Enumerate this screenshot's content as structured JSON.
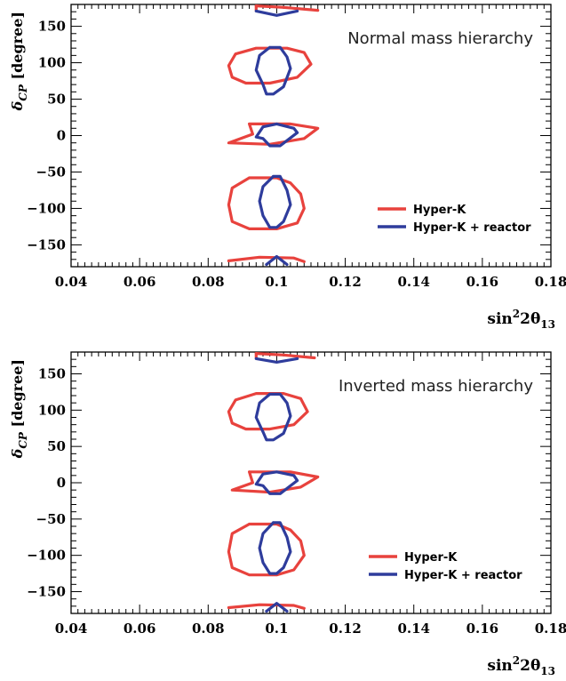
{
  "chart_data": [
    {
      "type": "line",
      "annotation": "Normal mass hierarchy",
      "xlabel": {
        "base": "sin",
        "sup": "2",
        "mid": "2θ",
        "sub": "13"
      },
      "ylabel": {
        "sym": "δ",
        "sub": "CP",
        "rest": " [degree]"
      },
      "xlim": [
        0.04,
        0.18
      ],
      "ylim": [
        -180,
        180
      ],
      "x_ticks": [
        0.04,
        0.06,
        0.08,
        0.1,
        0.12,
        0.14,
        0.16,
        0.18
      ],
      "x_tick_labels": [
        "0.04",
        "0.06",
        "0.08",
        "0.1",
        "0.12",
        "0.14",
        "0.16",
        "0.18"
      ],
      "y_ticks": [
        -150,
        -100,
        -50,
        0,
        50,
        100,
        150
      ],
      "y_tick_labels": [
        "−150",
        "−100",
        "−50",
        "0",
        "50",
        "100",
        "150"
      ],
      "legend": "right",
      "grid": false,
      "series": [
        {
          "name": "Hyper-K",
          "color": "#e8423d",
          "contours": [
            [
              [
                0.094,
                120
              ],
              [
                0.103,
                120
              ],
              [
                0.108,
                114
              ],
              [
                0.11,
                98
              ],
              [
                0.106,
                80
              ],
              [
                0.098,
                72
              ],
              [
                0.091,
                72
              ],
              [
                0.087,
                80
              ],
              [
                0.086,
                96
              ],
              [
                0.088,
                112
              ],
              [
                0.094,
                120
              ]
            ],
            [
              [
                0.092,
                16
              ],
              [
                0.104,
                16
              ],
              [
                0.112,
                10
              ],
              [
                0.108,
                -4
              ],
              [
                0.098,
                -12
              ],
              [
                0.086,
                -10
              ],
              [
                0.093,
                2
              ],
              [
                0.092,
                16
              ]
            ],
            [
              [
                0.092,
                -58
              ],
              [
                0.1,
                -58
              ],
              [
                0.104,
                -65
              ],
              [
                0.107,
                -80
              ],
              [
                0.108,
                -100
              ],
              [
                0.106,
                -120
              ],
              [
                0.1,
                -128
              ],
              [
                0.092,
                -128
              ],
              [
                0.087,
                -118
              ],
              [
                0.086,
                -95
              ],
              [
                0.087,
                -72
              ],
              [
                0.092,
                -58
              ]
            ],
            [
              [
                0.094,
                178
              ],
              [
                0.102,
                176
              ],
              [
                0.112,
                172
              ]
            ],
            [
              [
                0.094,
                178
              ],
              [
                0.094,
                172
              ]
            ],
            [
              [
                0.086,
                -172
              ],
              [
                0.095,
                -167
              ],
              [
                0.105,
                -168
              ],
              [
                0.108,
                -173
              ]
            ]
          ]
        },
        {
          "name": "Hyper-K + reactor",
          "color": "#2e3c9c",
          "contours": [
            [
              [
                0.098,
                121
              ],
              [
                0.101,
                121
              ],
              [
                0.103,
                108
              ],
              [
                0.104,
                92
              ],
              [
                0.102,
                67
              ],
              [
                0.099,
                57
              ],
              [
                0.097,
                57
              ],
              [
                0.096,
                70
              ],
              [
                0.094,
                90
              ],
              [
                0.095,
                110
              ],
              [
                0.098,
                121
              ]
            ],
            [
              [
                0.096,
                12
              ],
              [
                0.1,
                16
              ],
              [
                0.105,
                10
              ],
              [
                0.106,
                4
              ],
              [
                0.101,
                -14
              ],
              [
                0.098,
                -14
              ],
              [
                0.096,
                -4
              ],
              [
                0.094,
                -2
              ],
              [
                0.096,
                12
              ]
            ],
            [
              [
                0.099,
                -56
              ],
              [
                0.101,
                -56
              ],
              [
                0.103,
                -75
              ],
              [
                0.104,
                -95
              ],
              [
                0.102,
                -118
              ],
              [
                0.1,
                -126
              ],
              [
                0.098,
                -126
              ],
              [
                0.096,
                -110
              ],
              [
                0.095,
                -90
              ],
              [
                0.096,
                -70
              ],
              [
                0.099,
                -56
              ]
            ],
            [
              [
                0.094,
                171
              ],
              [
                0.1,
                165
              ],
              [
                0.106,
                171
              ]
            ],
            [
              [
                0.097,
                -177
              ],
              [
                0.1,
                -166
              ],
              [
                0.103,
                -177
              ]
            ]
          ]
        }
      ]
    },
    {
      "type": "line",
      "annotation": "Inverted mass hierarchy",
      "xlabel": {
        "base": "sin",
        "sup": "2",
        "mid": "2θ",
        "sub": "13"
      },
      "ylabel": {
        "sym": "δ",
        "sub": "CP",
        "rest": " [degree]"
      },
      "xlim": [
        0.04,
        0.18
      ],
      "ylim": [
        -180,
        180
      ],
      "x_ticks": [
        0.04,
        0.06,
        0.08,
        0.1,
        0.12,
        0.14,
        0.16,
        0.18
      ],
      "x_tick_labels": [
        "0.04",
        "0.06",
        "0.08",
        "0.1",
        "0.12",
        "0.14",
        "0.16",
        "0.18"
      ],
      "y_ticks": [
        -150,
        -100,
        -50,
        0,
        50,
        100,
        150
      ],
      "y_tick_labels": [
        "−150",
        "−100",
        "−50",
        "0",
        "50",
        "100",
        "150"
      ],
      "legend": "right",
      "grid": false,
      "series": [
        {
          "name": "Hyper-K",
          "color": "#e8423d",
          "contours": [
            [
              [
                0.094,
                123
              ],
              [
                0.102,
                123
              ],
              [
                0.107,
                116
              ],
              [
                0.109,
                98
              ],
              [
                0.105,
                80
              ],
              [
                0.098,
                74
              ],
              [
                0.091,
                74
              ],
              [
                0.087,
                82
              ],
              [
                0.086,
                98
              ],
              [
                0.088,
                114
              ],
              [
                0.094,
                123
              ]
            ],
            [
              [
                0.092,
                15
              ],
              [
                0.104,
                15
              ],
              [
                0.112,
                8
              ],
              [
                0.107,
                -6
              ],
              [
                0.098,
                -13
              ],
              [
                0.087,
                -10
              ],
              [
                0.093,
                0
              ],
              [
                0.092,
                15
              ]
            ],
            [
              [
                0.092,
                -57
              ],
              [
                0.1,
                -57
              ],
              [
                0.104,
                -65
              ],
              [
                0.107,
                -80
              ],
              [
                0.108,
                -100
              ],
              [
                0.105,
                -120
              ],
              [
                0.1,
                -127
              ],
              [
                0.092,
                -127
              ],
              [
                0.087,
                -117
              ],
              [
                0.086,
                -95
              ],
              [
                0.087,
                -70
              ],
              [
                0.092,
                -57
              ]
            ],
            [
              [
                0.094,
                178
              ],
              [
                0.102,
                176
              ],
              [
                0.111,
                172
              ]
            ],
            [
              [
                0.094,
                178
              ],
              [
                0.094,
                172
              ]
            ],
            [
              [
                0.086,
                -172
              ],
              [
                0.095,
                -168
              ],
              [
                0.105,
                -169
              ],
              [
                0.108,
                -173
              ]
            ]
          ]
        },
        {
          "name": "Hyper-K + reactor",
          "color": "#2e3c9c",
          "contours": [
            [
              [
                0.098,
                122
              ],
              [
                0.101,
                122
              ],
              [
                0.103,
                110
              ],
              [
                0.104,
                92
              ],
              [
                0.102,
                68
              ],
              [
                0.099,
                59
              ],
              [
                0.097,
                59
              ],
              [
                0.096,
                70
              ],
              [
                0.094,
                90
              ],
              [
                0.095,
                110
              ],
              [
                0.098,
                122
              ]
            ],
            [
              [
                0.096,
                12
              ],
              [
                0.1,
                15
              ],
              [
                0.105,
                10
              ],
              [
                0.106,
                3
              ],
              [
                0.101,
                -15
              ],
              [
                0.098,
                -15
              ],
              [
                0.096,
                -4
              ],
              [
                0.094,
                -2
              ],
              [
                0.096,
                12
              ]
            ],
            [
              [
                0.099,
                -55
              ],
              [
                0.101,
                -55
              ],
              [
                0.103,
                -75
              ],
              [
                0.104,
                -95
              ],
              [
                0.102,
                -117
              ],
              [
                0.1,
                -125
              ],
              [
                0.098,
                -125
              ],
              [
                0.096,
                -110
              ],
              [
                0.095,
                -90
              ],
              [
                0.096,
                -70
              ],
              [
                0.099,
                -55
              ]
            ],
            [
              [
                0.094,
                171
              ],
              [
                0.1,
                166
              ],
              [
                0.106,
                171
              ]
            ],
            [
              [
                0.097,
                -177
              ],
              [
                0.1,
                -166
              ],
              [
                0.103,
                -177
              ]
            ]
          ]
        }
      ]
    }
  ]
}
